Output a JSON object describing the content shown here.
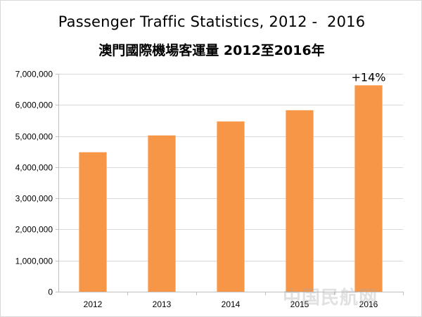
{
  "title": "Passenger Traffic Statistics, 2012 -  2016",
  "subtitle": "澳門國際機場客運量 2012至2016年",
  "watermark": "中国民航网",
  "colors": {
    "bar": "#f79646",
    "grid": "#d9d9d9",
    "axis": "#bfbfbf"
  },
  "chart_data": {
    "type": "bar",
    "categories": [
      "2012",
      "2013",
      "2014",
      "2015",
      "2016"
    ],
    "values": [
      4480000,
      5020000,
      5470000,
      5830000,
      6630000
    ],
    "ylim": [
      0,
      7000000
    ],
    "yticks": [
      "0",
      "1,000,000",
      "2,000,000",
      "3,000,000",
      "4,000,000",
      "5,000,000",
      "6,000,000",
      "7,000,000"
    ],
    "grid": true,
    "annotations": [
      {
        "category": "2016",
        "text": "+14%"
      }
    ]
  }
}
